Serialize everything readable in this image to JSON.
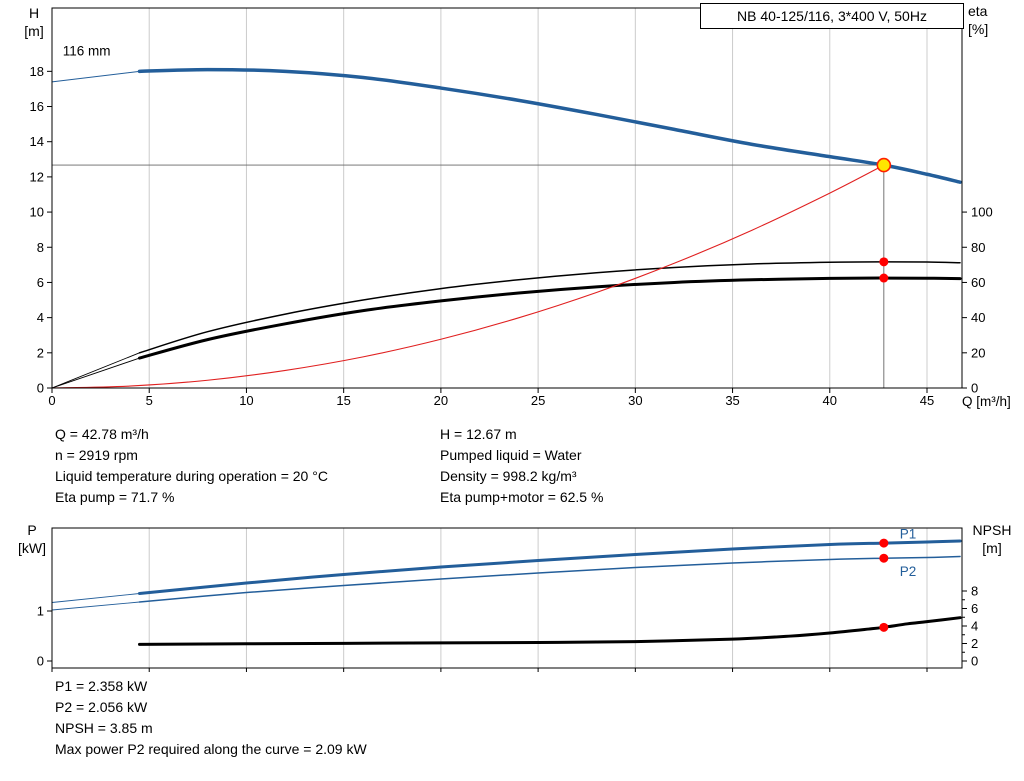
{
  "title_box": "NB 40-125/116, 3*400 V, 50Hz",
  "colors": {
    "curve_blue": "#235e9a",
    "system_red": "#e02020",
    "dot_red": "#ff0000",
    "duty_fill": "#ffe600",
    "duty_stroke": "#ff2000",
    "grid": "#cccccc",
    "crosshair": "#666666",
    "black": "#000000"
  },
  "axis_labels": {
    "top_left": [
      "H",
      "[m]"
    ],
    "top_right": [
      "eta",
      "[%]"
    ],
    "x": "Q [m³/h]",
    "bottom_left": [
      "P",
      "[kW]"
    ],
    "bottom_right": [
      "NPSH",
      "[m]"
    ]
  },
  "chart_data": [
    {
      "type": "line",
      "name": "head-capacity-efficiency-chart",
      "x_axis": {
        "label": "Q [m³/h]",
        "min": 0,
        "max": 46.8,
        "ticks": [
          0,
          5,
          10,
          15,
          20,
          25,
          30,
          35,
          40,
          45
        ],
        "show_labels": true
      },
      "y_left": {
        "label": "H [m]",
        "min": 0,
        "max": 21.6,
        "ticks": [
          0,
          2,
          4,
          6,
          8,
          10,
          12,
          14,
          16,
          18
        ]
      },
      "y_right": {
        "label": "eta [%]",
        "min": 0,
        "max": 216,
        "ticks": [
          0,
          20,
          40,
          60,
          80,
          100
        ]
      },
      "grid": true,
      "series": [
        {
          "name": "head-curve-leadin",
          "axis": "left",
          "color": "#235e9a",
          "width": 1,
          "points": [
            [
              0,
              17.4
            ],
            [
              4.5,
              18.0
            ]
          ]
        },
        {
          "name": "head-curve",
          "axis": "left",
          "color": "#235e9a",
          "width": 3.5,
          "points": [
            [
              4.5,
              18.0
            ],
            [
              8,
              18.1
            ],
            [
              12,
              18.0
            ],
            [
              16,
              17.65
            ],
            [
              20,
              17.05
            ],
            [
              24,
              16.35
            ],
            [
              28,
              15.55
            ],
            [
              32,
              14.7
            ],
            [
              36,
              13.85
            ],
            [
              40,
              13.15
            ],
            [
              42.78,
              12.67
            ],
            [
              45,
              12.15
            ],
            [
              46.7,
              11.7
            ]
          ]
        },
        {
          "name": "eta-pump-leadin",
          "axis": "right",
          "color": "#000000",
          "width": 0.9,
          "points": [
            [
              0,
              0
            ],
            [
              4.5,
              20
            ]
          ]
        },
        {
          "name": "eta-pump-curve",
          "axis": "right",
          "color": "#000000",
          "width": 1.5,
          "points": [
            [
              4.5,
              20
            ],
            [
              8,
              32
            ],
            [
              12,
              42
            ],
            [
              16,
              50
            ],
            [
              20,
              56.5
            ],
            [
              24,
              61.5
            ],
            [
              28,
              65.5
            ],
            [
              32,
              68.5
            ],
            [
              36,
              70.5
            ],
            [
              40,
              71.5
            ],
            [
              42.78,
              71.7
            ],
            [
              45,
              71.6
            ],
            [
              46.7,
              71.2
            ]
          ]
        },
        {
          "name": "eta-pump-motor-leadin",
          "axis": "right",
          "color": "#000000",
          "width": 0.9,
          "points": [
            [
              0,
              0
            ],
            [
              4.5,
              17
            ]
          ]
        },
        {
          "name": "eta-pump-motor-curve",
          "axis": "right",
          "color": "#000000",
          "width": 3,
          "points": [
            [
              4.5,
              17
            ],
            [
              8,
              27.5
            ],
            [
              12,
              36.5
            ],
            [
              16,
              44
            ],
            [
              20,
              49.5
            ],
            [
              24,
              54
            ],
            [
              28,
              57.5
            ],
            [
              32,
              60
            ],
            [
              36,
              61.5
            ],
            [
              40,
              62.3
            ],
            [
              42.78,
              62.5
            ],
            [
              45,
              62.4
            ],
            [
              46.7,
              62.2
            ]
          ]
        },
        {
          "name": "system-curve",
          "axis": "left",
          "color": "#e02020",
          "width": 1.1,
          "points": [
            [
              0,
              0
            ],
            [
              4,
              0.11
            ],
            [
              8,
              0.44
            ],
            [
              12,
              1.0
            ],
            [
              16,
              1.77
            ],
            [
              20,
              2.77
            ],
            [
              24,
              3.99
            ],
            [
              28,
              5.43
            ],
            [
              32,
              7.09
            ],
            [
              36,
              8.97
            ],
            [
              40,
              11.08
            ],
            [
              42.78,
              12.67
            ]
          ]
        }
      ],
      "crosshair": {
        "x": 42.78,
        "y": 12.67,
        "axis": "left"
      },
      "duty_point": {
        "x": 42.78,
        "y": 12.67,
        "axis": "left"
      },
      "dots": [
        {
          "x": 42.78,
          "y": 71.7,
          "axis": "right"
        },
        {
          "x": 42.78,
          "y": 62.5,
          "axis": "right"
        }
      ],
      "labels": [
        {
          "x": 0.55,
          "y": 18.9,
          "axis": "left",
          "text": "116 mm",
          "color": "#000000",
          "anchor": "start",
          "name": "impeller-diameter-label"
        }
      ]
    },
    {
      "type": "line",
      "name": "power-npsh-chart",
      "x_axis": {
        "label": "Q [m³/h]",
        "min": 0,
        "max": 46.8,
        "ticks": [
          0,
          5,
          10,
          15,
          20,
          25,
          30,
          35,
          40,
          45
        ],
        "show_labels": false
      },
      "y_left": {
        "label": "P [kW]",
        "min": -0.14,
        "max": 2.66,
        "ticks": [
          0,
          1
        ]
      },
      "y_right": {
        "label": "NPSH [m]",
        "min": -0.8,
        "max": 15.2,
        "ticks": [
          0,
          2,
          4,
          6,
          8
        ],
        "minor_ticks": [
          1,
          3,
          5,
          7
        ]
      },
      "grid": true,
      "series": [
        {
          "name": "p1-leadin",
          "axis": "left",
          "color": "#235e9a",
          "width": 0.9,
          "points": [
            [
              0,
              1.17
            ],
            [
              4.5,
              1.35
            ]
          ]
        },
        {
          "name": "p1-curve",
          "axis": "left",
          "color": "#235e9a",
          "width": 3,
          "points": [
            [
              4.5,
              1.35
            ],
            [
              10,
              1.56
            ],
            [
              15,
              1.73
            ],
            [
              20,
              1.88
            ],
            [
              25,
              2.01
            ],
            [
              30,
              2.13
            ],
            [
              35,
              2.24
            ],
            [
              40,
              2.33
            ],
            [
              42.78,
              2.358
            ],
            [
              45,
              2.38
            ],
            [
              46.7,
              2.4
            ]
          ]
        },
        {
          "name": "p2-leadin",
          "axis": "left",
          "color": "#235e9a",
          "width": 0.9,
          "points": [
            [
              0,
              1.02
            ],
            [
              4.5,
              1.18
            ]
          ]
        },
        {
          "name": "p2-curve",
          "axis": "left",
          "color": "#235e9a",
          "width": 1.5,
          "points": [
            [
              4.5,
              1.18
            ],
            [
              10,
              1.37
            ],
            [
              15,
              1.51
            ],
            [
              20,
              1.64
            ],
            [
              25,
              1.76
            ],
            [
              30,
              1.87
            ],
            [
              35,
              1.96
            ],
            [
              40,
              2.03
            ],
            [
              42.78,
              2.056
            ],
            [
              45,
              2.07
            ],
            [
              46.7,
              2.09
            ]
          ]
        },
        {
          "name": "npsh-curve",
          "axis": "right",
          "color": "#000000",
          "width": 3,
          "points": [
            [
              4.5,
              1.9
            ],
            [
              10,
              1.97
            ],
            [
              15,
              2.02
            ],
            [
              20,
              2.07
            ],
            [
              25,
              2.12
            ],
            [
              30,
              2.22
            ],
            [
              35,
              2.5
            ],
            [
              38,
              2.85
            ],
            [
              40,
              3.2
            ],
            [
              42,
              3.65
            ],
            [
              42.78,
              3.85
            ],
            [
              44,
              4.25
            ],
            [
              45,
              4.5
            ],
            [
              46.7,
              4.95
            ]
          ]
        }
      ],
      "dots": [
        {
          "x": 42.78,
          "y": 2.358,
          "axis": "left"
        },
        {
          "x": 42.78,
          "y": 2.056,
          "axis": "left"
        },
        {
          "x": 42.78,
          "y": 3.85,
          "axis": "right"
        }
      ],
      "labels": [
        {
          "x": 43.6,
          "y": 2.45,
          "axis": "left",
          "text": "P1",
          "color": "#235e9a",
          "anchor": "start",
          "name": "p1-curve-label"
        },
        {
          "x": 43.6,
          "y": 1.7,
          "axis": "left",
          "text": "P2",
          "color": "#235e9a",
          "anchor": "start",
          "name": "p2-curve-label"
        }
      ]
    }
  ],
  "info": {
    "left": [
      "Q = 42.78 m³/h",
      "n = 2919 rpm",
      "Liquid temperature during operation = 20 °C",
      "Eta pump = 71.7 %"
    ],
    "right": [
      "H = 12.67 m",
      "Pumped liquid = Water",
      "Density = 998.2 kg/m³",
      "Eta pump+motor = 62.5 %"
    ]
  },
  "footer": [
    "P1 = 2.358 kW",
    "P2 = 2.056 kW",
    "NPSH = 3.85 m",
    "Max power P2 required along the curve = 2.09 kW"
  ]
}
